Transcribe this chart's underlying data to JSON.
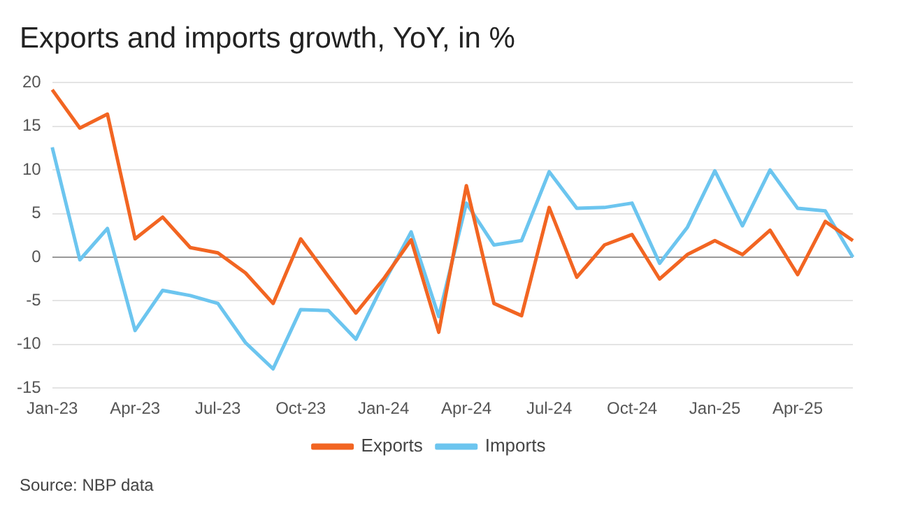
{
  "chart_data": {
    "type": "line",
    "title": "Exports and imports growth, YoY, in %",
    "categories": [
      "Jan-23",
      null,
      null,
      "Apr-23",
      null,
      null,
      "Jul-23",
      null,
      null,
      "Oct-23",
      null,
      null,
      "Jan-24",
      null,
      null,
      "Apr-24",
      null,
      null,
      "Jul-24",
      null,
      null,
      "Oct-24",
      null,
      null,
      "Jan-25",
      null,
      null,
      "Apr-25",
      null,
      null
    ],
    "series": [
      {
        "name": "Exports",
        "color": "#f26522",
        "values": [
          19.2,
          14.8,
          16.4,
          2.1,
          4.6,
          1.1,
          0.5,
          -1.8,
          -5.3,
          2.1,
          -2.2,
          -6.4,
          -2.5,
          2.0,
          -8.6,
          8.2,
          -5.3,
          -6.7,
          5.7,
          -2.3,
          1.4,
          2.6,
          -2.5,
          0.3,
          1.9,
          0.3,
          3.1,
          -2.0,
          4.1,
          1.9
        ]
      },
      {
        "name": "Imports",
        "color": "#6cc5ef",
        "values": [
          12.6,
          -0.3,
          3.3,
          -8.4,
          -3.8,
          -4.4,
          -5.3,
          -9.8,
          -12.8,
          -6.0,
          -6.1,
          -9.4,
          -3.0,
          2.9,
          -6.8,
          6.2,
          1.4,
          1.9,
          9.8,
          5.6,
          5.7,
          6.2,
          -0.7,
          3.4,
          9.9,
          3.6,
          10.0,
          5.6,
          5.3,
          0
        ]
      }
    ],
    "ylim": [
      -15,
      20
    ],
    "yticks": [
      -15,
      -10,
      -5,
      0,
      5,
      10,
      15,
      20
    ],
    "grid": "y",
    "legend": "bottom",
    "marker": "none",
    "line_style": "solid",
    "annotations": [
      "Source: NBP data"
    ]
  }
}
